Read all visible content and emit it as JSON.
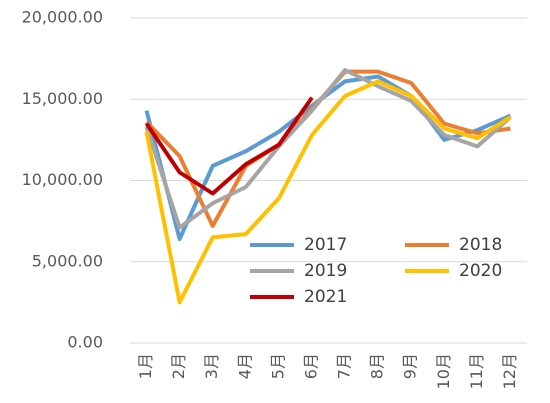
{
  "chart_data": {
    "type": "line",
    "categories": [
      "1月",
      "2月",
      "3月",
      "4月",
      "5月",
      "6月",
      "7月",
      "8月",
      "9月",
      "10月",
      "11月",
      "12月"
    ],
    "series": [
      {
        "name": "2017",
        "color": "#5b9bd5",
        "values": [
          14300,
          6400,
          10900,
          11800,
          13000,
          14600,
          16100,
          16400,
          15200,
          12500,
          13100,
          14000
        ]
      },
      {
        "name": "2018",
        "color": "#ed7d31",
        "values": [
          13600,
          11500,
          7200,
          10900,
          12200,
          14400,
          16700,
          16700,
          16000,
          13500,
          12900,
          13200
        ]
      },
      {
        "name": "2019",
        "color": "#a5a5a5",
        "values": [
          13300,
          7100,
          8600,
          9600,
          12100,
          14300,
          16800,
          15800,
          14900,
          12800,
          12100,
          13900
        ]
      },
      {
        "name": "2020",
        "color": "#ffc000",
        "values": [
          13000,
          2500,
          6500,
          6700,
          8900,
          12800,
          15200,
          16100,
          15200,
          13200,
          12600,
          13900
        ]
      },
      {
        "name": "2021",
        "color": "#c00000",
        "values": [
          13500,
          10500,
          9200,
          11000,
          12200,
          15100,
          null,
          null,
          null,
          null,
          null,
          null
        ]
      }
    ],
    "ylim": [
      0,
      20000
    ],
    "yticks": [
      {
        "value": 0,
        "label": "0.00"
      },
      {
        "value": 5000,
        "label": "5,000.00"
      },
      {
        "value": 10000,
        "label": "10,000.00"
      },
      {
        "value": 15000,
        "label": "15,000.00"
      },
      {
        "value": 20000,
        "label": "20,000.00"
      }
    ],
    "grid": true
  }
}
